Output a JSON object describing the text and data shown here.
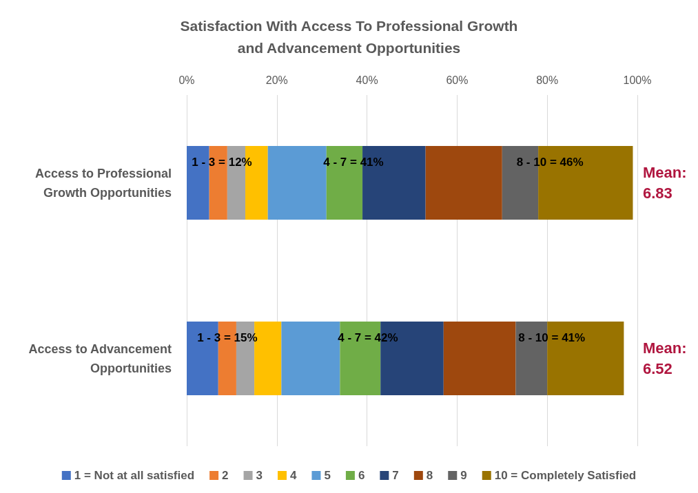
{
  "chart_data": {
    "type": "bar",
    "orientation": "horizontal",
    "stacked": true,
    "title": "Satisfaction With Access To Professional Growth\nand Advancement Opportunities",
    "categories": [
      "Access to Professional\nGrowth Opportunities",
      "Access to Advancement\nOpportunities"
    ],
    "series": [
      {
        "name": "1 = Not at all satisfied",
        "color": "#4472c4",
        "values": [
          5,
          7
        ]
      },
      {
        "name": "2",
        "color": "#ed7d31",
        "values": [
          4,
          4
        ]
      },
      {
        "name": "3",
        "color": "#a5a5a5",
        "values": [
          4,
          4
        ]
      },
      {
        "name": "4",
        "color": "#ffc000",
        "values": [
          5,
          6
        ]
      },
      {
        "name": "5",
        "color": "#5b9bd5",
        "values": [
          13,
          13
        ]
      },
      {
        "name": "6",
        "color": "#70ad47",
        "values": [
          8,
          9
        ]
      },
      {
        "name": "7",
        "color": "#264478",
        "values": [
          14,
          14
        ]
      },
      {
        "name": "8",
        "color": "#9e480e",
        "values": [
          17,
          16
        ]
      },
      {
        "name": "9",
        "color": "#636363",
        "values": [
          8,
          7
        ]
      },
      {
        "name": "10 = Completely Satisfied",
        "color": "#997300",
        "values": [
          21,
          17
        ]
      }
    ],
    "xlim": [
      0,
      100
    ],
    "xticks": [
      {
        "value": 0,
        "label": "0%"
      },
      {
        "value": 20,
        "label": "20%"
      },
      {
        "value": 40,
        "label": "40%"
      },
      {
        "value": 60,
        "label": "60%"
      },
      {
        "value": 80,
        "label": "80%"
      },
      {
        "value": 100,
        "label": "100%"
      }
    ],
    "grid": "x",
    "legend": "bottom",
    "annotations": [
      "1 - 3 = 12%",
      "4 - 7 = 41%",
      "8 - 10 = 46%",
      "1 - 3 = 15%",
      "4 - 7 = 42%",
      "8 - 10 = 41%",
      "Mean:\n6.83",
      "Mean:\n6.52"
    ]
  }
}
